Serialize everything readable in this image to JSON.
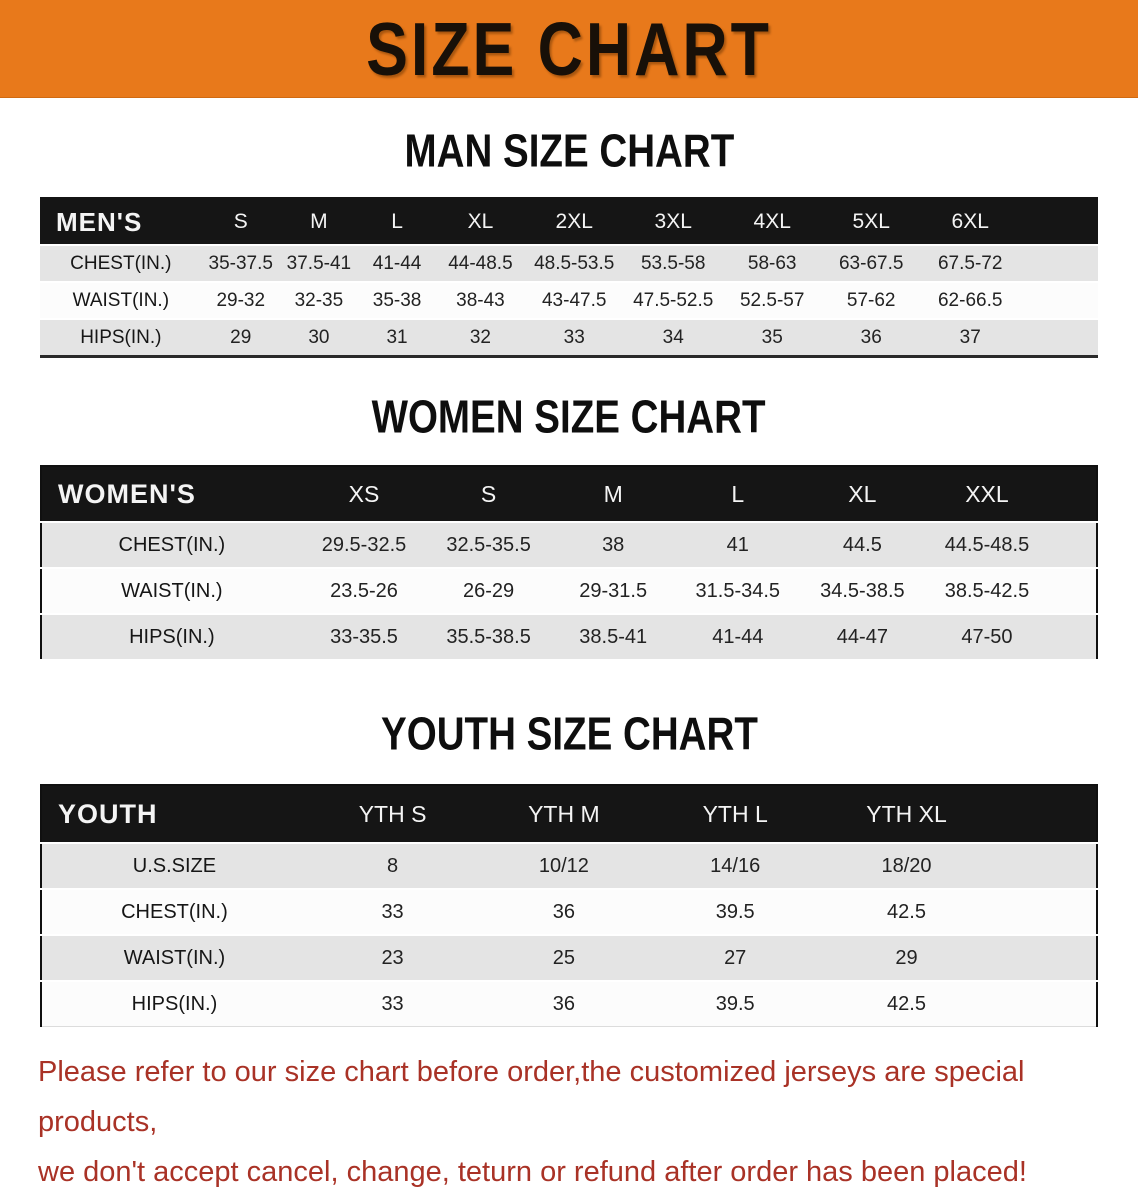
{
  "banner": {
    "title": "SIZE CHART"
  },
  "colors": {
    "banner_bg": "#E8791B",
    "table_header_bg": "#151515",
    "row_gray": "#E4E4E4",
    "row_white": "#FCFCFC",
    "disclaimer_red": "#A93226"
  },
  "men": {
    "heading": "MAN SIZE CHART",
    "corner_label": "MEN'S",
    "sizes": [
      "S",
      "M",
      "L",
      "XL",
      "2XL",
      "3XL",
      "4XL",
      "5XL",
      "6XL"
    ],
    "rows": [
      {
        "label": "CHEST(IN.)",
        "values": [
          "35-37.5",
          "37.5-41",
          "41-44",
          "44-48.5",
          "48.5-53.5",
          "53.5-58",
          "58-63",
          "63-67.5",
          "67.5-72"
        ]
      },
      {
        "label": "WAIST(IN.)",
        "values": [
          "29-32",
          "32-35",
          "35-38",
          "38-43",
          "43-47.5",
          "47.5-52.5",
          "52.5-57",
          "57-62",
          "62-66.5"
        ]
      },
      {
        "label": "HIPS(IN.)",
        "values": [
          "29",
          "30",
          "31",
          "32",
          "33",
          "34",
          "35",
          "36",
          "37"
        ]
      }
    ]
  },
  "women": {
    "heading": "WOMEN SIZE CHART",
    "corner_label": "WOMEN'S",
    "sizes": [
      "XS",
      "S",
      "M",
      "L",
      "XL",
      "XXL"
    ],
    "rows": [
      {
        "label": "CHEST(IN.)",
        "values": [
          "29.5-32.5",
          "32.5-35.5",
          "38",
          "41",
          "44.5",
          "44.5-48.5"
        ]
      },
      {
        "label": "WAIST(IN.)",
        "values": [
          "23.5-26",
          "26-29",
          "29-31.5",
          "31.5-34.5",
          "34.5-38.5",
          "38.5-42.5"
        ]
      },
      {
        "label": "HIPS(IN.)",
        "values": [
          "33-35.5",
          "35.5-38.5",
          "38.5-41",
          "41-44",
          "44-47",
          "47-50"
        ]
      }
    ]
  },
  "youth": {
    "heading": "YOUTH SIZE CHART",
    "corner_label": "YOUTH",
    "sizes": [
      "YTH S",
      "YTH M",
      "YTH L",
      "YTH XL"
    ],
    "rows": [
      {
        "label": "U.S.SIZE",
        "values": [
          "8",
          "10/12",
          "14/16",
          "18/20"
        ]
      },
      {
        "label": "CHEST(IN.)",
        "values": [
          "33",
          "36",
          "39.5",
          "42.5"
        ]
      },
      {
        "label": "WAIST(IN.)",
        "values": [
          "23",
          "25",
          "27",
          "29"
        ]
      },
      {
        "label": "HIPS(IN.)",
        "values": [
          "33",
          "36",
          "39.5",
          "42.5"
        ]
      }
    ]
  },
  "disclaimer": {
    "line1": "Please refer to our size chart before order,the customized jerseys are special products,",
    "line2": "we don't accept cancel, change, teturn or refund after order has been placed!"
  }
}
